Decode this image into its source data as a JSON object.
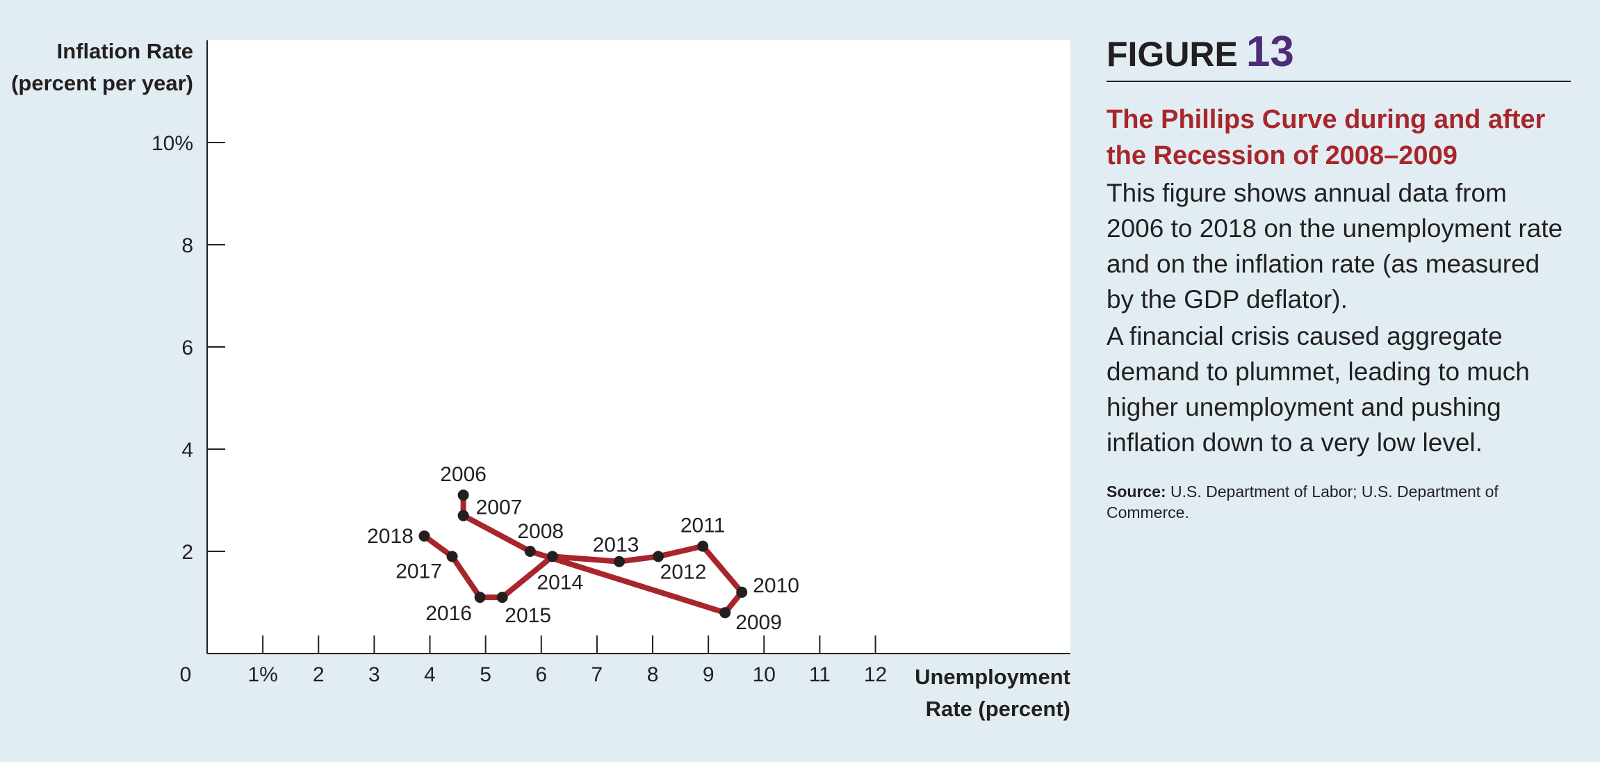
{
  "figure": {
    "label": "FIGURE",
    "number": "13",
    "title": "The Phillips Curve during and after the Recession of 2008–2009",
    "body_1": "This figure shows annual data from 2006 to 2018 on the unemployment rate and on the inflation rate (as measured by the GDP deflator).",
    "body_2": "A financial crisis caused aggregate demand to plummet, leading to much higher unemployment and pushing inflation down to a very low level.",
    "source_label": "Source:",
    "source_text": "U.S. Department of Labor; U.S. Department of Commerce."
  },
  "colors": {
    "background": "#e1edf2",
    "plot_area": "#ffffff",
    "series_line": "#a8262b",
    "point": "#231f20",
    "figure_number": "#4d2c7a",
    "title": "#a8262b"
  },
  "chart_data": {
    "type": "line",
    "ylabel": [
      "Inflation Rate",
      "(percent per year)"
    ],
    "xlabel": [
      "Unemployment",
      "Rate (percent)"
    ],
    "xlim": [
      0,
      15.5
    ],
    "ylim": [
      0,
      12
    ],
    "x_ticks": [
      {
        "value": 1,
        "label": "1%"
      },
      {
        "value": 2,
        "label": "2"
      },
      {
        "value": 3,
        "label": "3"
      },
      {
        "value": 4,
        "label": "4"
      },
      {
        "value": 5,
        "label": "5"
      },
      {
        "value": 6,
        "label": "6"
      },
      {
        "value": 7,
        "label": "7"
      },
      {
        "value": 8,
        "label": "8"
      },
      {
        "value": 9,
        "label": "9"
      },
      {
        "value": 10,
        "label": "10"
      },
      {
        "value": 11,
        "label": "11"
      },
      {
        "value": 12,
        "label": "12"
      }
    ],
    "y_ticks": [
      {
        "value": 2,
        "label": "2"
      },
      {
        "value": 4,
        "label": "4"
      },
      {
        "value": 6,
        "label": "6"
      },
      {
        "value": 8,
        "label": "8"
      },
      {
        "value": 10,
        "label": "10%"
      }
    ],
    "origin_label": "0",
    "grid": false,
    "series": [
      {
        "points": [
          {
            "year": "2006",
            "x": 4.6,
            "y": 3.1
          },
          {
            "year": "2007",
            "x": 4.6,
            "y": 2.7
          },
          {
            "year": "2008",
            "x": 5.8,
            "y": 2.0
          },
          {
            "year": "2009",
            "x": 9.3,
            "y": 0.8
          },
          {
            "year": "2010",
            "x": 9.6,
            "y": 1.2
          },
          {
            "year": "2011",
            "x": 8.9,
            "y": 2.1
          },
          {
            "year": "2012",
            "x": 8.1,
            "y": 1.9
          },
          {
            "year": "2013",
            "x": 7.4,
            "y": 1.8
          },
          {
            "year": "2014",
            "x": 6.2,
            "y": 1.9
          },
          {
            "year": "2015",
            "x": 5.3,
            "y": 1.1
          },
          {
            "year": "2016",
            "x": 4.9,
            "y": 1.1
          },
          {
            "year": "2017",
            "x": 4.4,
            "y": 1.9
          },
          {
            "year": "2018",
            "x": 3.9,
            "y": 2.3
          }
        ]
      }
    ]
  }
}
